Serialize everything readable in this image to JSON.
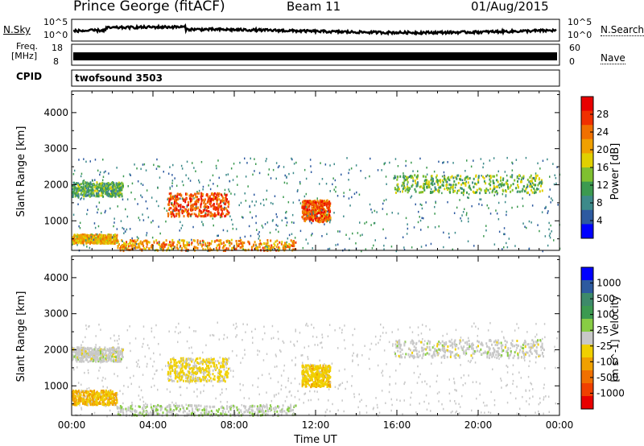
{
  "header": {
    "station": "Prince George (fitACF)",
    "beam": "Beam 11",
    "date": "01/Aug/2015"
  },
  "strip_labels": {
    "nsky": "N.Sky",
    "nsky_hi": "10^5",
    "nsky_lo": "10^0",
    "nsearch": "N.Search",
    "nsearch_hi": "10^5",
    "nsearch_lo": "10^0",
    "freq": "Freq.",
    "freq_unit": "[MHz]",
    "freq_hi": "18",
    "freq_lo": "8",
    "nave": "Nave",
    "nave_hi": "60",
    "nave_lo": "0",
    "cpid": "CPID",
    "cpid_value": "twofsound 3503"
  },
  "chart_data": [
    {
      "type": "heatmap",
      "title": "",
      "ylabel": "Slant Range [km]",
      "xlabel": "",
      "xlim": [
        "00:00",
        "24:00"
      ],
      "ylim": [
        180,
        4600
      ],
      "x_ticks": [
        "00:00",
        "04:00",
        "08:00",
        "12:00",
        "16:00",
        "20:00",
        "00:00"
      ],
      "y_ticks": [
        1000,
        2000,
        3000,
        4000
      ],
      "colorbar": {
        "label": "Power [dB]",
        "range": [
          0,
          32
        ],
        "ticks": [
          4,
          8,
          12,
          16,
          20,
          24,
          28
        ],
        "colors": [
          "#0000ff",
          "#2d5aa0",
          "#3d8a8a",
          "#3c9a50",
          "#7fc030",
          "#e0d000",
          "#f0a000",
          "#f07000",
          "#f03000",
          "#e80000"
        ]
      },
      "regions": [
        {
          "t0": 0.0,
          "t1": 2.5,
          "r0": 1700,
          "r1": 2100,
          "value": 12
        },
        {
          "t0": 4.7,
          "t1": 7.7,
          "r0": 1150,
          "r1": 1800,
          "value": 26
        },
        {
          "t0": 11.3,
          "t1": 12.7,
          "r0": 1000,
          "r1": 1600,
          "value": 25
        },
        {
          "t0": 0.0,
          "t1": 2.2,
          "r0": 400,
          "r1": 650,
          "value": 20
        },
        {
          "t0": 2.2,
          "t1": 11.0,
          "r0": 200,
          "r1": 500,
          "value": 22
        },
        {
          "t0": 15.8,
          "t1": 23.2,
          "r0": 1800,
          "r1": 2300,
          "value": 14
        }
      ]
    },
    {
      "type": "heatmap",
      "title": "",
      "ylabel": "Slant Range [km]",
      "xlabel": "Time UT",
      "xlim": [
        "00:00",
        "24:00"
      ],
      "ylim": [
        180,
        4600
      ],
      "x_ticks": [
        "00:00",
        "04:00",
        "08:00",
        "12:00",
        "16:00",
        "20:00",
        "00:00"
      ],
      "y_ticks": [
        1000,
        2000,
        3000,
        4000
      ],
      "colorbar": {
        "label": "Velocity",
        "unit": "[m s^-1]",
        "range": [
          -1000,
          1000
        ],
        "ticks": [
          "1000",
          "500",
          "100",
          "25",
          "-25",
          "-100",
          "-500",
          "-1000"
        ],
        "colors": [
          "#0000ff",
          "#2d5aa0",
          "#3d8a6a",
          "#3c9a50",
          "#88cc44",
          "#c8c8c8",
          "#f0d000",
          "#f0a000",
          "#f07000",
          "#f04000",
          "#e80000"
        ]
      },
      "regions": [
        {
          "t0": 0.0,
          "t1": 2.5,
          "r0": 1700,
          "r1": 2100,
          "value": 0
        },
        {
          "t0": 4.7,
          "t1": 7.7,
          "r0": 1150,
          "r1": 1800,
          "value": -150
        },
        {
          "t0": 11.3,
          "t1": 12.7,
          "r0": 1000,
          "r1": 1600,
          "value": -200
        },
        {
          "t0": 0.0,
          "t1": 2.2,
          "r0": 500,
          "r1": 900,
          "value": -300
        },
        {
          "t0": 2.2,
          "t1": 11.0,
          "r0": 200,
          "r1": 500,
          "value": 60
        },
        {
          "t0": 15.8,
          "t1": 23.2,
          "r0": 1800,
          "r1": 2300,
          "value": 0
        }
      ]
    }
  ]
}
